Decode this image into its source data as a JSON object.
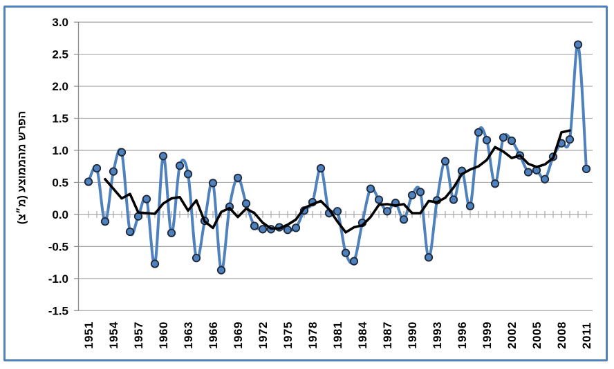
{
  "chart_data": {
    "type": "line",
    "title": "",
    "xlabel": "",
    "ylabel": "הפרש מהממוצע (מ״צ)",
    "ylim": [
      -1.5,
      3.0
    ],
    "ytick_step": 0.5,
    "yticks": [
      "3.0",
      "2.5",
      "2.0",
      "1.5",
      "1.0",
      "0.5",
      "0.0",
      "-0.5",
      "-1.0",
      "-1.5"
    ],
    "x_start": 1951,
    "x_end": 2011,
    "xticks": [
      1951,
      1954,
      1957,
      1960,
      1963,
      1966,
      1969,
      1972,
      1975,
      1978,
      1981,
      1984,
      1987,
      1990,
      1993,
      1996,
      1999,
      2002,
      2005,
      2008,
      2011
    ],
    "grid": "horizontal",
    "legend": "none",
    "colors": {
      "annual_line": "#4F81BD",
      "marker_fill": "#4F81BD",
      "marker_border": "#1F2A3C",
      "moving_average_line": "#000000",
      "gridline": "#A6A6A6",
      "axis_line": "#8C8C8C",
      "frame_border": "#4F81BD"
    },
    "series": [
      {
        "name": "annual_deviation",
        "style": "smooth_line_with_markers",
        "start_year": 1951,
        "values": [
          0.51,
          0.72,
          -0.11,
          0.67,
          0.97,
          -0.27,
          -0.03,
          0.24,
          -0.77,
          0.91,
          -0.29,
          0.76,
          0.63,
          -0.68,
          -0.1,
          0.49,
          -0.87,
          0.12,
          0.57,
          0.17,
          -0.18,
          -0.23,
          -0.23,
          -0.2,
          -0.24,
          -0.21,
          0.06,
          0.19,
          0.72,
          0.02,
          0.05,
          -0.6,
          -0.73,
          -0.13,
          0.4,
          0.23,
          0.05,
          0.18,
          -0.08,
          0.3,
          0.35,
          -0.67,
          0.22,
          0.83,
          0.23,
          0.68,
          0.13,
          1.28,
          1.16,
          0.48,
          1.2,
          1.15,
          0.92,
          0.66,
          0.69,
          0.55,
          0.9,
          1.11,
          1.17,
          2.65,
          0.71
        ]
      },
      {
        "name": "moving_average_5yr",
        "style": "straight_line",
        "start_year": 1953,
        "values": [
          0.55,
          0.4,
          0.25,
          0.32,
          0.03,
          0.02,
          0.01,
          0.17,
          0.25,
          0.27,
          0.06,
          0.22,
          -0.11,
          -0.21,
          0.04,
          0.1,
          -0.04,
          0.09,
          0.02,
          -0.13,
          -0.22,
          -0.22,
          -0.16,
          -0.08,
          0.1,
          0.16,
          0.21,
          0.08,
          -0.11,
          -0.28,
          -0.2,
          -0.17,
          -0.04,
          0.15,
          0.16,
          0.14,
          0.16,
          0.02,
          0.02,
          0.21,
          0.19,
          0.26,
          0.42,
          0.63,
          0.7,
          0.75,
          0.85,
          1.05,
          0.98,
          0.88,
          0.92,
          0.79,
          0.74,
          0.78,
          0.88,
          1.28,
          1.31
        ]
      }
    ]
  }
}
